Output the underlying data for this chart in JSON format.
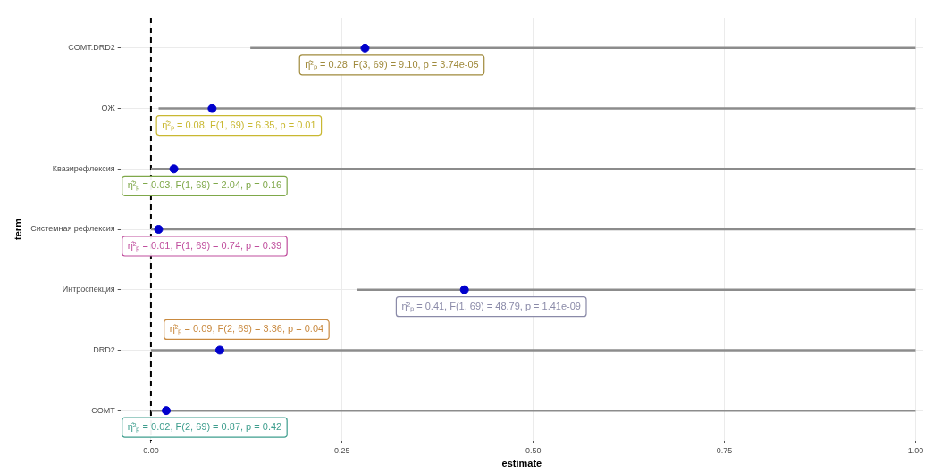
{
  "chart_data": {
    "type": "scatter",
    "orientation": "horizontal",
    "categories": [
      "COMT:DRD2",
      "ОЖ",
      "Квазирефлексия",
      "Системная рефлексия",
      "Интроспекция",
      "DRD2",
      "COMT"
    ],
    "values": [
      0.28,
      0.08,
      0.03,
      0.01,
      0.41,
      0.09,
      0.02
    ],
    "errors": [
      [
        0.13,
        1.0
      ],
      [
        0.01,
        1.0
      ],
      [
        0.0,
        1.0
      ],
      [
        0.0,
        1.0
      ],
      [
        0.27,
        1.0
      ],
      [
        0.0,
        1.0
      ],
      [
        0.0,
        1.0
      ]
    ],
    "color": "#0000cc",
    "marker": "circle",
    "xlim": [
      -0.04,
      1.01
    ],
    "xticks": [
      {
        "value": 0,
        "label": "0.00"
      },
      {
        "value": 0.25,
        "label": "0.25"
      },
      {
        "value": 0.5,
        "label": "0.50"
      },
      {
        "value": 0.75,
        "label": "0.75"
      },
      {
        "value": 1,
        "label": "1.00"
      }
    ],
    "xlabel": "estimate",
    "ylabel": "term",
    "grid": true,
    "legend": false,
    "ref_lines": [
      {
        "axis": "x",
        "value": 0,
        "line_style": "dashed",
        "color": "#000000"
      }
    ],
    "annotations": [
      "η̂²ₚ = 0.28, F(3, 69) = 9.10, p = 3.74e-05",
      "η̂²ₚ = 0.08, F(1, 69) = 6.35, p = 0.01",
      "η̂²ₚ = 0.03, F(1, 69) = 2.04, p = 0.16",
      "η̂²ₚ = 0.01, F(1, 69) = 0.74, p = 0.39",
      "η̂²ₚ = 0.41, F(1, 69) = 48.79, p = 1.41e-09",
      "η̂²ₚ = 0.09, F(2, 69) = 3.36, p = 0.04",
      "η̂²ₚ = 0.02, F(2, 69) = 0.87, p = 0.42"
    ]
  }
}
